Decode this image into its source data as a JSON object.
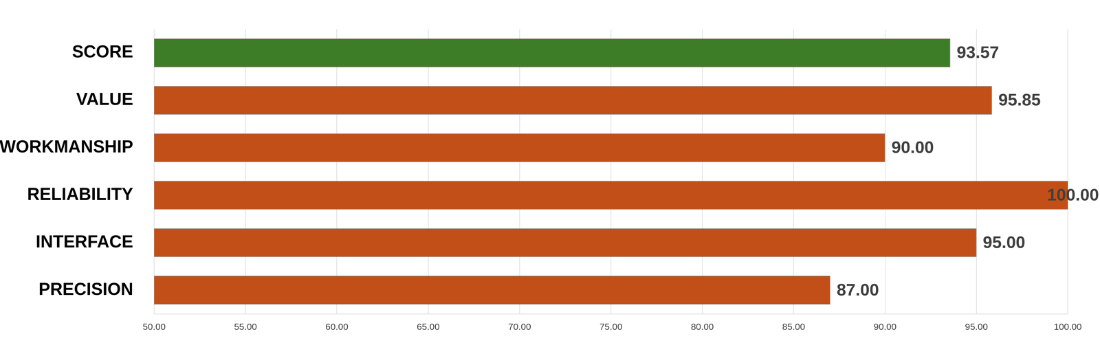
{
  "chart_data": {
    "type": "bar",
    "orientation": "horizontal",
    "categories": [
      "SCORE",
      "VALUE",
      "WORKMANSHIP",
      "RELIABILITY",
      "INTERFACE",
      "PRECISION"
    ],
    "values": [
      93.57,
      95.85,
      90,
      100,
      95,
      87
    ],
    "value_labels": [
      "93.57",
      "95.85",
      "90.00",
      "100.00",
      "95.00",
      "87.00"
    ],
    "colors": [
      "#3d7d27",
      "#c14f17",
      "#c14f17",
      "#c14f17",
      "#c14f17",
      "#c14f17"
    ],
    "xlim": [
      50,
      100
    ],
    "xticks": [
      {
        "value": 50,
        "label": "50.00"
      },
      {
        "value": 55,
        "label": "55.00"
      },
      {
        "value": 60,
        "label": "60.00"
      },
      {
        "value": 65,
        "label": "65.00"
      },
      {
        "value": 70,
        "label": "70.00"
      },
      {
        "value": 75,
        "label": "75.00"
      },
      {
        "value": 80,
        "label": "80.00"
      },
      {
        "value": 85,
        "label": "85.00"
      },
      {
        "value": 90,
        "label": "90.00"
      },
      {
        "value": 95,
        "label": "95.00"
      },
      {
        "value": 100,
        "label": "100.00"
      }
    ],
    "grid": true,
    "data_labels": true
  }
}
